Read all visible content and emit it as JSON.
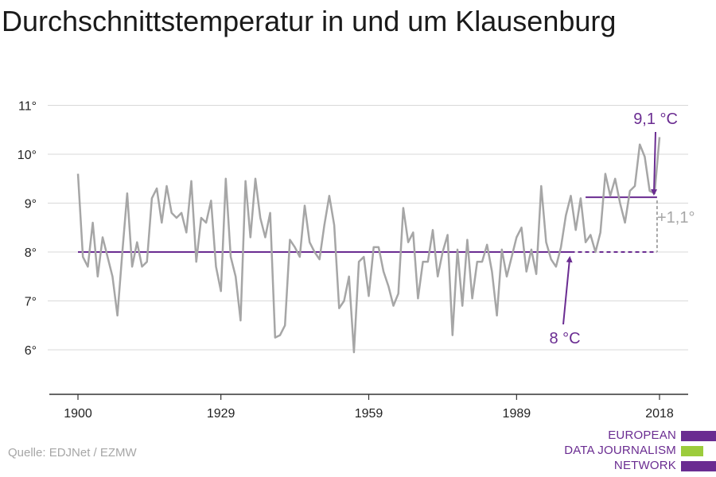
{
  "title": "Durchschnittstemperatur in und um Klausenburg",
  "source": "Quelle: EDJNet / EZMW",
  "logo": {
    "lines": [
      "EUROPEAN",
      "DATA JOURNALISM",
      "NETWORK"
    ],
    "bar_colors": [
      "#6a2c91",
      "#9ccc3c",
      "#6a2c91"
    ]
  },
  "colors": {
    "series": "#a6a6a6",
    "accent": "#6a2c91",
    "grid": "#d9d9d9",
    "axis": "#333333",
    "difference": "#a6a6a6"
  },
  "chart_data": {
    "type": "line",
    "title": "Durchschnittstemperatur in und um Klausenburg",
    "xlabel": "",
    "ylabel": "",
    "xlim": [
      1900,
      2018
    ],
    "ylim": [
      5,
      11
    ],
    "y_ticks": [
      6,
      7,
      8,
      9,
      10,
      11
    ],
    "y_tick_labels": [
      "6°",
      "7°",
      "8°",
      "9°",
      "10°",
      "11°"
    ],
    "x_ticks": [
      1900,
      1929,
      1959,
      1989,
      2018
    ],
    "x_tick_labels": [
      "1900",
      "1929",
      "1959",
      "1989",
      "2018"
    ],
    "grid": true,
    "x": [
      1900,
      1901,
      1902,
      1903,
      1904,
      1905,
      1906,
      1907,
      1908,
      1909,
      1910,
      1911,
      1912,
      1913,
      1914,
      1915,
      1916,
      1917,
      1918,
      1919,
      1920,
      1921,
      1922,
      1923,
      1924,
      1925,
      1926,
      1927,
      1928,
      1929,
      1930,
      1931,
      1932,
      1933,
      1934,
      1935,
      1936,
      1937,
      1938,
      1939,
      1940,
      1941,
      1942,
      1943,
      1944,
      1945,
      1946,
      1947,
      1948,
      1949,
      1950,
      1951,
      1952,
      1953,
      1954,
      1955,
      1956,
      1957,
      1958,
      1959,
      1960,
      1961,
      1962,
      1963,
      1964,
      1965,
      1966,
      1967,
      1968,
      1969,
      1970,
      1971,
      1972,
      1973,
      1974,
      1975,
      1976,
      1977,
      1978,
      1979,
      1980,
      1981,
      1982,
      1983,
      1984,
      1985,
      1986,
      1987,
      1988,
      1989,
      1990,
      1991,
      1992,
      1993,
      1994,
      1995,
      1996,
      1997,
      1998,
      1999,
      2000,
      2001,
      2002,
      2003,
      2004,
      2005,
      2006,
      2007,
      2008,
      2009,
      2010,
      2011,
      2012,
      2013,
      2014,
      2015,
      2016,
      2017,
      2018
    ],
    "values": [
      9.6,
      7.9,
      7.7,
      8.6,
      7.5,
      8.3,
      7.9,
      7.5,
      6.7,
      8.0,
      9.2,
      7.7,
      8.2,
      7.7,
      7.8,
      9.1,
      9.3,
      8.6,
      9.35,
      8.8,
      8.7,
      8.8,
      8.4,
      9.45,
      7.8,
      8.7,
      8.6,
      9.05,
      7.7,
      7.2,
      9.5,
      7.9,
      7.5,
      6.6,
      9.45,
      8.3,
      9.5,
      8.7,
      8.3,
      8.8,
      6.25,
      6.3,
      6.5,
      8.25,
      8.1,
      7.9,
      8.95,
      8.2,
      8.0,
      7.85,
      8.55,
      9.15,
      8.55,
      6.85,
      7.0,
      7.5,
      5.95,
      7.8,
      7.9,
      7.1,
      8.1,
      8.1,
      7.6,
      7.3,
      6.9,
      7.15,
      8.9,
      8.2,
      8.4,
      7.05,
      7.8,
      7.8,
      8.45,
      7.5,
      8.0,
      8.35,
      6.3,
      8.05,
      6.9,
      8.25,
      7.05,
      7.8,
      7.8,
      8.15,
      7.6,
      6.7,
      8.05,
      7.5,
      7.9,
      8.3,
      8.5,
      7.6,
      8.05,
      7.55,
      9.35,
      8.2,
      7.85,
      7.7,
      8.1,
      8.75,
      9.15,
      8.45,
      9.1,
      8.2,
      8.35,
      8.0,
      8.4,
      9.6,
      9.15,
      9.5,
      9.0,
      8.6,
      9.25,
      9.35,
      10.2,
      9.95,
      9.25,
      9.2,
      10.35
    ],
    "annotations": {
      "baseline": {
        "value": 8.0,
        "from": 1900,
        "to": 2017.5,
        "solid_until": 2000,
        "label": "8 °C"
      },
      "recent": {
        "value": 9.12,
        "from": 2003,
        "to": 2017.5,
        "label": "9,1 °C"
      },
      "difference": {
        "label": "+1,1°"
      }
    }
  }
}
